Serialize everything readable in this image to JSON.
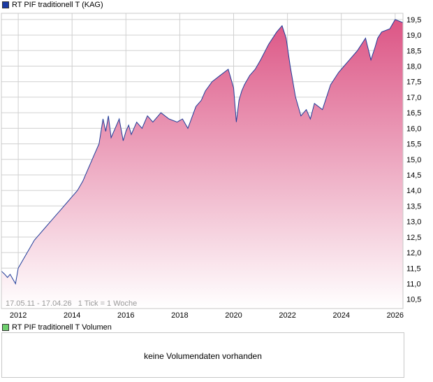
{
  "chart_data": {
    "type": "area",
    "series": [
      {
        "name": "RT PIF traditionell T (KAG)",
        "x": [
          "2011.38",
          "2011.5",
          "2011.6",
          "2011.7",
          "2011.9",
          "2012.0",
          "2012.2",
          "2012.4",
          "2012.6",
          "2012.8",
          "2013.0",
          "2013.2",
          "2013.4",
          "2013.6",
          "2013.8",
          "2014.0",
          "2014.2",
          "2014.4",
          "2014.6",
          "2014.8",
          "2015.0",
          "2015.15",
          "2015.25",
          "2015.35",
          "2015.45",
          "2015.6",
          "2015.75",
          "2015.9",
          "2016.0",
          "2016.1",
          "2016.2",
          "2016.4",
          "2016.6",
          "2016.8",
          "2017.0",
          "2017.3",
          "2017.6",
          "2017.9",
          "2018.1",
          "2018.3",
          "2018.6",
          "2018.8",
          "2018.95",
          "2019.2",
          "2019.5",
          "2019.8",
          "2020.0",
          "2020.1",
          "2020.2",
          "2020.3",
          "2020.4",
          "2020.6",
          "2020.8",
          "2021.0",
          "2021.3",
          "2021.6",
          "2021.8",
          "2021.95",
          "2022.1",
          "2022.3",
          "2022.5",
          "2022.7",
          "2022.85",
          "2023.0",
          "2023.3",
          "2023.6",
          "2023.9",
          "2024.1",
          "2024.3",
          "2024.6",
          "2024.9",
          "2025.1",
          "2025.25",
          "2025.35",
          "2025.5",
          "2025.8",
          "2026.0",
          "2026.29"
        ],
        "values": [
          11.4,
          11.3,
          11.2,
          11.3,
          11.0,
          11.5,
          11.8,
          12.1,
          12.4,
          12.6,
          12.8,
          13.0,
          13.2,
          13.4,
          13.6,
          13.8,
          14.0,
          14.3,
          14.7,
          15.1,
          15.5,
          16.3,
          15.9,
          16.4,
          15.7,
          16.0,
          16.3,
          15.6,
          15.9,
          16.1,
          15.8,
          16.2,
          16.0,
          16.4,
          16.2,
          16.5,
          16.3,
          16.2,
          16.3,
          16.0,
          16.7,
          16.9,
          17.2,
          17.5,
          17.7,
          17.9,
          17.3,
          16.2,
          16.9,
          17.2,
          17.4,
          17.7,
          17.9,
          18.2,
          18.7,
          19.1,
          19.3,
          18.9,
          18.0,
          17.0,
          16.4,
          16.6,
          16.3,
          16.8,
          16.6,
          17.4,
          17.8,
          18.0,
          18.2,
          18.5,
          18.9,
          18.2,
          18.6,
          18.9,
          19.1,
          19.2,
          19.5,
          19.4
        ]
      }
    ],
    "xticks": [
      "2012",
      "2014",
      "2016",
      "2018",
      "2020",
      "2022",
      "2024",
      "2026"
    ],
    "yticks": [
      "10,5",
      "11,0",
      "11,5",
      "12,0",
      "12,5",
      "13,0",
      "13,5",
      "14,0",
      "14,5",
      "15,0",
      "15,5",
      "16,0",
      "16,5",
      "17,0",
      "17,5",
      "18,0",
      "18,5",
      "19,0",
      "19,5"
    ],
    "xlim": [
      2011.375,
      2026.29
    ],
    "ylim": [
      10.2,
      19.7
    ],
    "grid": true,
    "legend": "top-left"
  },
  "range_text": "17.05.11 - 17.04.26",
  "tick_text": "1 Tick = 1 Woche",
  "volume_legend": "RT PIF traditionell T Volumen",
  "volume_message": "keine Volumendaten vorhanden",
  "colors": {
    "line": "#1f3c99",
    "fill_top": "#dc5585",
    "fill_bottom": "#ffffff",
    "grid": "#d0d0d0",
    "legend_main": "#1a3aa3",
    "legend_volume": "#6ecf6e"
  }
}
